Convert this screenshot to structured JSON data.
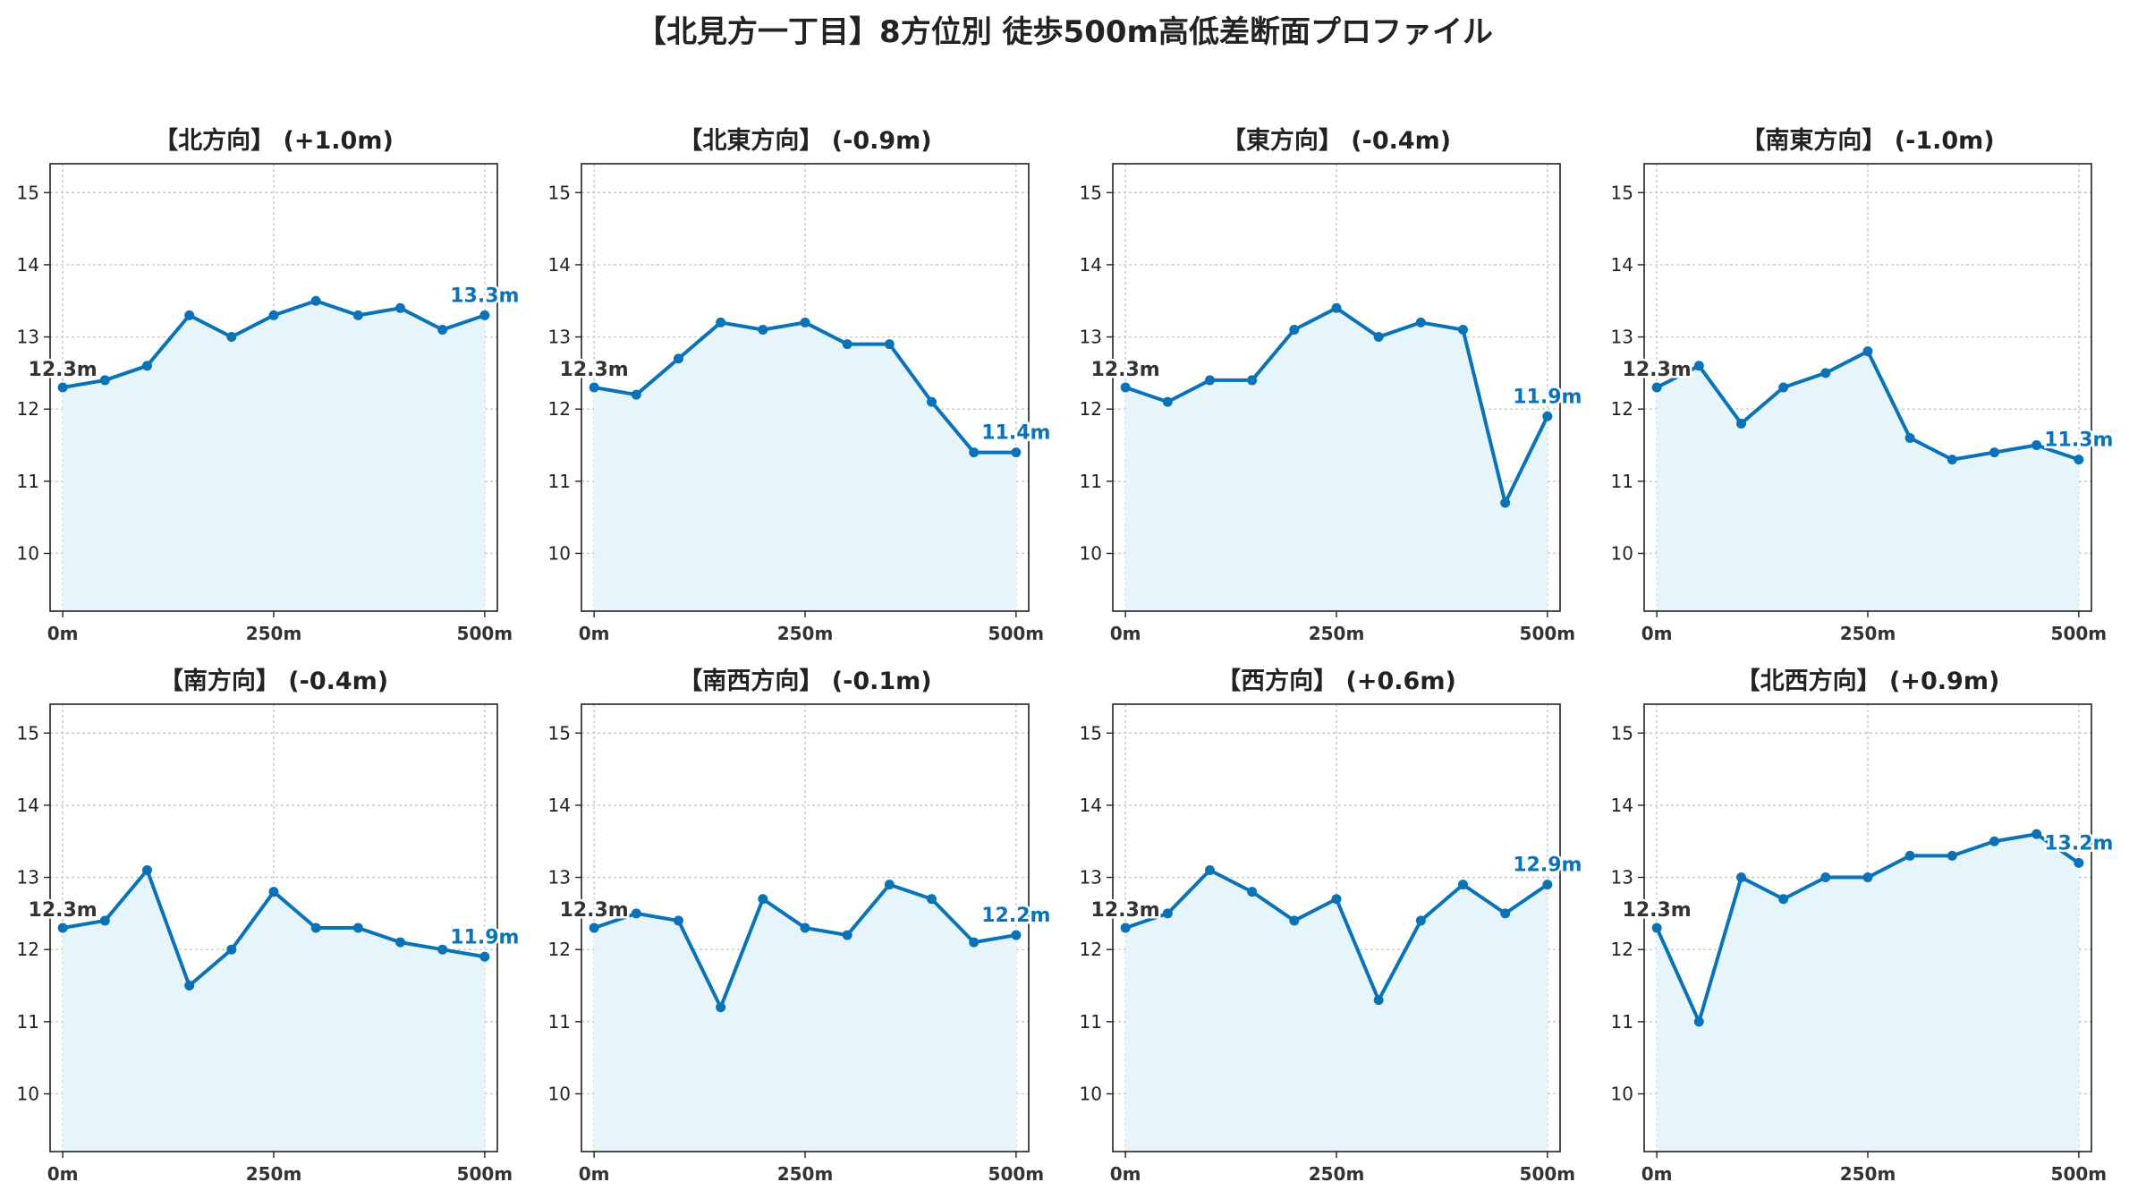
{
  "title": "【北見方一丁目】8方位別 徒歩500m高低差断面プロファイル",
  "colors": {
    "line": "#0a73b7",
    "fill": "#e6f5fb",
    "start_label": "#333333",
    "end_label": "#0a73b7",
    "grid": "#c8c8c8",
    "axis": "#222222"
  },
  "chart_data": [
    {
      "type": "area",
      "title": "【北方向】 (+1.0m)",
      "x": [
        0,
        50,
        100,
        150,
        200,
        250,
        300,
        350,
        400,
        450,
        500
      ],
      "y": [
        12.3,
        12.4,
        12.6,
        13.3,
        13.0,
        13.3,
        13.5,
        13.3,
        13.4,
        13.1,
        13.3
      ],
      "xticks": [
        "0m",
        "250m",
        "500m"
      ],
      "xtick_values": [
        0,
        250,
        500
      ],
      "yticks": [
        10,
        11,
        12,
        13,
        14,
        15
      ],
      "xlim": [
        -15,
        515
      ],
      "ylim": [
        9.2,
        15.4
      ],
      "grid": true,
      "start_label": "12.3m",
      "end_label": "13.3m"
    },
    {
      "type": "area",
      "title": "【北東方向】 (-0.9m)",
      "x": [
        0,
        50,
        100,
        150,
        200,
        250,
        300,
        350,
        400,
        450,
        500
      ],
      "y": [
        12.3,
        12.2,
        12.7,
        13.2,
        13.1,
        13.2,
        12.9,
        12.9,
        12.1,
        11.4,
        11.4
      ],
      "xticks": [
        "0m",
        "250m",
        "500m"
      ],
      "xtick_values": [
        0,
        250,
        500
      ],
      "yticks": [
        10,
        11,
        12,
        13,
        14,
        15
      ],
      "xlim": [
        -15,
        515
      ],
      "ylim": [
        9.2,
        15.4
      ],
      "grid": true,
      "start_label": "12.3m",
      "end_label": "11.4m"
    },
    {
      "type": "area",
      "title": "【東方向】 (-0.4m)",
      "x": [
        0,
        50,
        100,
        150,
        200,
        250,
        300,
        350,
        400,
        450,
        500
      ],
      "y": [
        12.3,
        12.1,
        12.4,
        12.4,
        13.1,
        13.4,
        13.0,
        13.2,
        13.1,
        10.7,
        11.9
      ],
      "xticks": [
        "0m",
        "250m",
        "500m"
      ],
      "xtick_values": [
        0,
        250,
        500
      ],
      "yticks": [
        10,
        11,
        12,
        13,
        14,
        15
      ],
      "xlim": [
        -15,
        515
      ],
      "ylim": [
        9.2,
        15.4
      ],
      "grid": true,
      "start_label": "12.3m",
      "end_label": "11.9m"
    },
    {
      "type": "area",
      "title": "【南東方向】 (-1.0m)",
      "x": [
        0,
        50,
        100,
        150,
        200,
        250,
        300,
        350,
        400,
        450,
        500
      ],
      "y": [
        12.3,
        12.6,
        11.8,
        12.3,
        12.5,
        12.8,
        11.6,
        11.3,
        11.4,
        11.5,
        11.3
      ],
      "xticks": [
        "0m",
        "250m",
        "500m"
      ],
      "xtick_values": [
        0,
        250,
        500
      ],
      "yticks": [
        10,
        11,
        12,
        13,
        14,
        15
      ],
      "xlim": [
        -15,
        515
      ],
      "ylim": [
        9.2,
        15.4
      ],
      "grid": true,
      "start_label": "12.3m",
      "end_label": "11.3m"
    },
    {
      "type": "area",
      "title": "【南方向】 (-0.4m)",
      "x": [
        0,
        50,
        100,
        150,
        200,
        250,
        300,
        350,
        400,
        450,
        500
      ],
      "y": [
        12.3,
        12.4,
        13.1,
        11.5,
        12.0,
        12.8,
        12.3,
        12.3,
        12.1,
        12.0,
        11.9
      ],
      "xticks": [
        "0m",
        "250m",
        "500m"
      ],
      "xtick_values": [
        0,
        250,
        500
      ],
      "yticks": [
        10,
        11,
        12,
        13,
        14,
        15
      ],
      "xlim": [
        -15,
        515
      ],
      "ylim": [
        9.2,
        15.4
      ],
      "grid": true,
      "start_label": "12.3m",
      "end_label": "11.9m"
    },
    {
      "type": "area",
      "title": "【南西方向】 (-0.1m)",
      "x": [
        0,
        50,
        100,
        150,
        200,
        250,
        300,
        350,
        400,
        450,
        500
      ],
      "y": [
        12.3,
        12.5,
        12.4,
        11.2,
        12.7,
        12.3,
        12.2,
        12.9,
        12.7,
        12.1,
        12.2
      ],
      "xticks": [
        "0m",
        "250m",
        "500m"
      ],
      "xtick_values": [
        0,
        250,
        500
      ],
      "yticks": [
        10,
        11,
        12,
        13,
        14,
        15
      ],
      "xlim": [
        -15,
        515
      ],
      "ylim": [
        9.2,
        15.4
      ],
      "grid": true,
      "start_label": "12.3m",
      "end_label": "12.2m"
    },
    {
      "type": "area",
      "title": "【西方向】 (+0.6m)",
      "x": [
        0,
        50,
        100,
        150,
        200,
        250,
        300,
        350,
        400,
        450,
        500
      ],
      "y": [
        12.3,
        12.5,
        13.1,
        12.8,
        12.4,
        12.7,
        11.3,
        12.4,
        12.9,
        12.5,
        12.9
      ],
      "xticks": [
        "0m",
        "250m",
        "500m"
      ],
      "xtick_values": [
        0,
        250,
        500
      ],
      "yticks": [
        10,
        11,
        12,
        13,
        14,
        15
      ],
      "xlim": [
        -15,
        515
      ],
      "ylim": [
        9.2,
        15.4
      ],
      "grid": true,
      "start_label": "12.3m",
      "end_label": "12.9m"
    },
    {
      "type": "area",
      "title": "【北西方向】 (+0.9m)",
      "x": [
        0,
        50,
        100,
        150,
        200,
        250,
        300,
        350,
        400,
        450,
        500
      ],
      "y": [
        12.3,
        11.0,
        13.0,
        12.7,
        13.0,
        13.0,
        13.3,
        13.3,
        13.5,
        13.6,
        13.2
      ],
      "xticks": [
        "0m",
        "250m",
        "500m"
      ],
      "xtick_values": [
        0,
        250,
        500
      ],
      "yticks": [
        10,
        11,
        12,
        13,
        14,
        15
      ],
      "xlim": [
        -15,
        515
      ],
      "ylim": [
        9.2,
        15.4
      ],
      "grid": true,
      "start_label": "12.3m",
      "end_label": "13.2m"
    }
  ]
}
